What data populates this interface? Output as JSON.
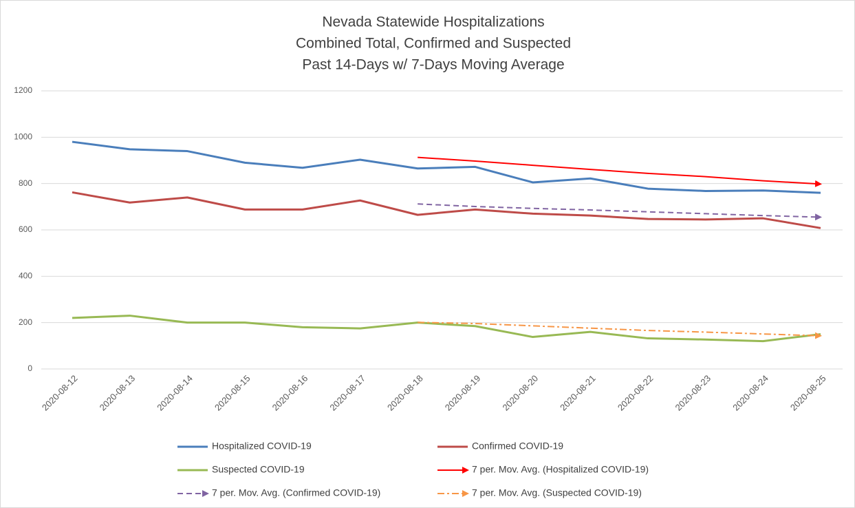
{
  "chart_data": {
    "type": "line",
    "title": [
      "Nevada Statewide Hospitalizations",
      "Combined Total, Confirmed and Suspected",
      "Past 14-Days w/ 7-Days Moving Average"
    ],
    "categories": [
      "2020-08-12",
      "2020-08-13",
      "2020-08-14",
      "2020-08-15",
      "2020-08-16",
      "2020-08-17",
      "2020-08-18",
      "2020-08-19",
      "2020-08-20",
      "2020-08-21",
      "2020-08-22",
      "2020-08-23",
      "2020-08-24",
      "2020-08-25"
    ],
    "ylim": [
      0,
      1200
    ],
    "yticks": [
      0,
      200,
      400,
      600,
      800,
      1000,
      1200
    ],
    "grid": true,
    "series": [
      {
        "name": "Hospitalized COVID-19",
        "color": "#4a7ebb",
        "dash": "solid",
        "values": [
          980,
          948,
          940,
          890,
          868,
          903,
          865,
          872,
          805,
          822,
          778,
          768,
          770,
          760
        ]
      },
      {
        "name": "Confirmed COVID-19",
        "color": "#be4b48",
        "dash": "solid",
        "values": [
          762,
          718,
          740,
          688,
          688,
          727,
          665,
          688,
          670,
          662,
          647,
          645,
          650,
          608
        ]
      },
      {
        "name": "Suspected COVID-19",
        "color": "#98b954",
        "dash": "solid",
        "values": [
          220,
          230,
          200,
          200,
          180,
          175,
          200,
          185,
          138,
          160,
          132,
          127,
          120,
          150
        ]
      },
      {
        "name": "7 per. Mov. Avg. (Hospitalized COVID-19)",
        "color": "#ff0000",
        "dash": "solid",
        "arrow": true,
        "values": [
          null,
          null,
          null,
          null,
          null,
          null,
          913,
          897,
          879,
          861,
          844,
          830,
          812,
          798
        ]
      },
      {
        "name": "7 per. Mov. Avg. (Confirmed COVID-19)",
        "color": "#8064a2",
        "dash": "dashed",
        "arrow": true,
        "values": [
          null,
          null,
          null,
          null,
          null,
          null,
          712,
          701,
          693,
          686,
          678,
          670,
          662,
          655
        ]
      },
      {
        "name": "7 per. Mov. Avg. (Suspected COVID-19)",
        "color": "#f79646",
        "dash": "dashdot",
        "arrow": true,
        "values": [
          null,
          null,
          null,
          null,
          null,
          null,
          201,
          196,
          186,
          176,
          166,
          159,
          151,
          143
        ]
      }
    ]
  }
}
